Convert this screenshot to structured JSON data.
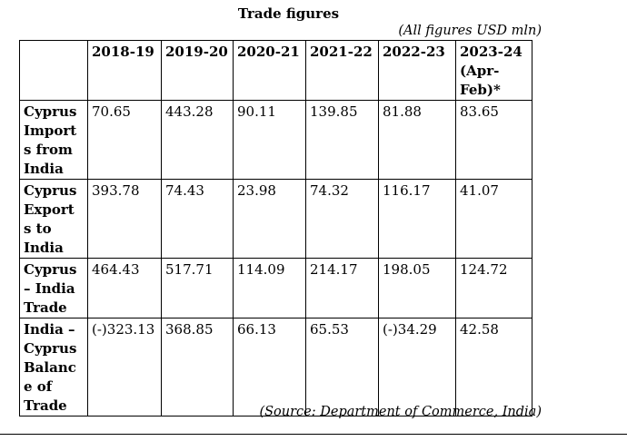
{
  "title": "Trade figures",
  "units_note": "(All figures USD mln)",
  "columns": [
    "2018-19",
    "2019-20",
    "2020-21",
    "2021-22",
    "2022-23"
  ],
  "last_column": [
    "2023-24",
    "(Apr-",
    "Feb)*"
  ],
  "rows": [
    {
      "label_lines": [
        "Cyprus",
        "Import",
        "s from",
        "India"
      ],
      "values": [
        "70.65",
        "443.28",
        "90.11",
        "139.85",
        "81.88",
        "83.65"
      ]
    },
    {
      "label_lines": [
        "Cyprus",
        "Export",
        "s to",
        "India"
      ],
      "values": [
        "393.78",
        "74.43",
        "23.98",
        "74.32",
        "116.17",
        "41.07"
      ]
    },
    {
      "label_lines": [
        "Cyprus",
        "– India",
        "Trade"
      ],
      "values": [
        "464.43",
        "517.71",
        "114.09",
        "214.17",
        "198.05",
        "124.72"
      ]
    },
    {
      "label_lines": [
        "India –",
        "Cyprus",
        "Balanc",
        "e of",
        "Trade"
      ],
      "values": [
        "(-)323.13",
        "368.85",
        "66.13",
        "65.53",
        "(-)34.29",
        "42.58"
      ]
    }
  ],
  "source": "(Source: Department of Commerce, India)"
}
